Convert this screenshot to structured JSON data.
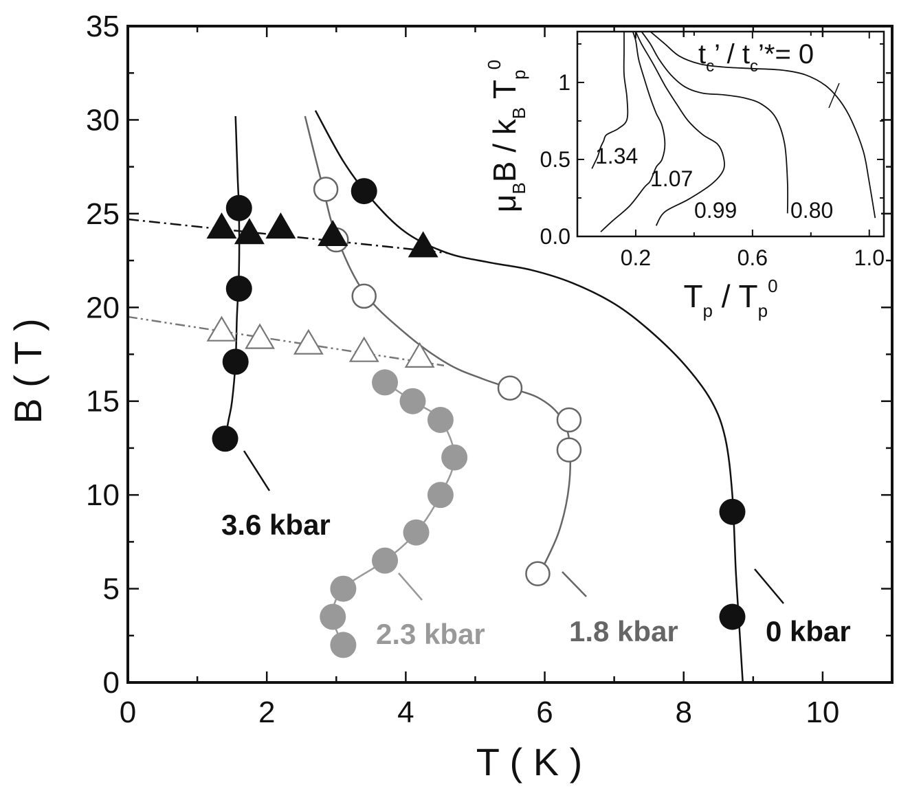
{
  "chart_data": [
    {
      "type": "scatter",
      "xlabel": "T ( K )",
      "ylabel": "B ( T )",
      "xlim": [
        0,
        11
      ],
      "ylim": [
        0,
        35
      ],
      "x_ticks": [
        "0",
        "2",
        "4",
        "6",
        "8",
        "10"
      ],
      "y_ticks": [
        "0",
        "5",
        "10",
        "15",
        "20",
        "25",
        "30",
        "35"
      ],
      "grid": false,
      "series": [
        {
          "name": "0 kbar",
          "color": "#111111",
          "marker": "filled-circle",
          "x": [
            3.4,
            8.7,
            8.7
          ],
          "y": [
            26.2,
            9.1,
            3.5
          ],
          "curve_x": [
            2.7,
            3.1,
            3.5,
            4.0,
            4.6,
            5.2,
            5.8,
            6.4,
            7.0,
            7.5,
            8.0,
            8.4,
            8.6,
            8.7,
            8.75,
            8.8,
            8.85
          ],
          "curve_y": [
            30.5,
            27.8,
            25.8,
            24.0,
            22.9,
            22.4,
            22.0,
            21.3,
            20.2,
            18.8,
            17.0,
            15.0,
            13.0,
            10.0,
            6.0,
            3.0,
            0.0
          ]
        },
        {
          "name": "1.8 kbar",
          "color": "#666666",
          "marker": "open-circle",
          "x": [
            2.85,
            3.0,
            3.4,
            5.5,
            6.35,
            6.35,
            5.9
          ],
          "y": [
            26.3,
            23.6,
            20.6,
            15.7,
            14.0,
            12.4,
            5.8
          ],
          "curve_x": [
            2.55,
            2.8,
            3.0,
            3.4,
            4.0,
            4.6,
            5.1,
            5.5,
            5.9,
            6.2,
            6.35,
            6.35,
            6.2,
            5.9
          ],
          "curve_y": [
            30.2,
            26.5,
            23.8,
            20.8,
            18.6,
            17.0,
            16.2,
            15.7,
            15.2,
            14.3,
            13.0,
            10.5,
            8.0,
            5.6
          ]
        },
        {
          "name": "2.3 kbar",
          "color": "#999999",
          "marker": "filled-circle",
          "x": [
            3.7,
            4.1,
            4.5,
            4.7,
            4.5,
            4.15,
            3.7,
            3.1,
            2.95,
            3.1
          ],
          "y": [
            16.0,
            15.0,
            14.0,
            12.0,
            10.0,
            8.0,
            6.5,
            5.0,
            3.5,
            2.0
          ],
          "curve_x": [
            3.7,
            4.1,
            4.5,
            4.7,
            4.5,
            4.15,
            3.7,
            3.1,
            2.95,
            3.1
          ],
          "curve_y": [
            16.0,
            15.0,
            14.0,
            12.0,
            10.0,
            8.0,
            6.5,
            5.0,
            3.5,
            2.0
          ]
        },
        {
          "name": "3.6 kbar",
          "color": "#111111",
          "marker": "filled-circle",
          "x": [
            1.6,
            1.6,
            1.55,
            1.4
          ],
          "y": [
            25.3,
            21.0,
            17.1,
            13.0
          ],
          "curve_x": [
            1.55,
            1.58,
            1.6,
            1.6,
            1.57,
            1.55,
            1.5,
            1.45,
            1.4
          ],
          "curve_y": [
            30.2,
            27.0,
            25.0,
            22.0,
            19.5,
            17.1,
            15.0,
            14.0,
            13.0
          ]
        },
        {
          "name": "",
          "color": "#111111",
          "marker": "filled-triangle",
          "x": [
            1.35,
            1.75,
            2.2,
            2.95,
            4.25
          ],
          "y": [
            24.2,
            23.9,
            24.2,
            23.8,
            23.2
          ],
          "line": "dash-dot",
          "line_x": [
            0,
            4.6
          ],
          "line_y": [
            24.7,
            22.9
          ]
        },
        {
          "name": "",
          "color": "#777777",
          "marker": "open-triangle",
          "x": [
            1.35,
            1.9,
            2.6,
            3.4,
            4.2
          ],
          "y": [
            18.7,
            18.3,
            18.0,
            17.6,
            17.3
          ],
          "line": "dash-dot-dot",
          "line_x": [
            0,
            4.55
          ],
          "line_y": [
            19.5,
            16.9
          ]
        }
      ]
    },
    {
      "type": "line",
      "xlabel_main": "T",
      "xlabel_sub": "p",
      "xlabel_mid": " / T",
      "xlabel_sup": "0",
      "ylabel_mu": "μ",
      "ylabel_b1": "B",
      "ylabel_mid": "B / k",
      "ylabel_b2": "B",
      "ylabel_t": " T",
      "ylabel_p": "p",
      "ylabel_sup": "0",
      "xlim": [
        0,
        1.05
      ],
      "ylim": [
        0,
        1.33
      ],
      "x_ticks": [
        "0.2",
        "0.6",
        "1.0"
      ],
      "y_ticks": [
        "0.0",
        "0.5",
        "1"
      ],
      "annotation": {
        "t": "t",
        "c1": "c",
        "mid1": "’ / t",
        "c2": "c",
        "rest": "’*= 0"
      },
      "series": [
        {
          "label": "0",
          "x": [
            0.25,
            0.3,
            0.35,
            0.42,
            0.5,
            0.6,
            0.7,
            0.78,
            0.85,
            0.9,
            0.94,
            0.98,
            1.0,
            1.02
          ],
          "y": [
            1.33,
            1.25,
            1.17,
            1.12,
            1.1,
            1.09,
            1.08,
            1.05,
            0.98,
            0.88,
            0.75,
            0.55,
            0.35,
            0.12
          ]
        },
        {
          "label": "0.80",
          "x": [
            0.22,
            0.25,
            0.28,
            0.32,
            0.37,
            0.43,
            0.5,
            0.57,
            0.63,
            0.68,
            0.71,
            0.72,
            0.72
          ],
          "y": [
            1.33,
            1.25,
            1.15,
            1.05,
            0.97,
            0.93,
            0.92,
            0.9,
            0.86,
            0.77,
            0.6,
            0.35,
            0.15
          ]
        },
        {
          "label": "0.99",
          "x": [
            0.2,
            0.22,
            0.26,
            0.3,
            0.34,
            0.38,
            0.43,
            0.48,
            0.5,
            0.5,
            0.46,
            0.38,
            0.3,
            0.27
          ],
          "y": [
            1.33,
            1.25,
            1.12,
            0.98,
            0.86,
            0.75,
            0.66,
            0.6,
            0.52,
            0.43,
            0.34,
            0.24,
            0.16,
            0.07
          ]
        },
        {
          "label": "1.07",
          "x": [
            0.19,
            0.2,
            0.21,
            0.23,
            0.25,
            0.27,
            0.29,
            0.3,
            0.29,
            0.27,
            0.25,
            0.23,
            0.18,
            0.12,
            0.08
          ],
          "y": [
            1.33,
            1.27,
            1.15,
            1.02,
            0.9,
            0.8,
            0.72,
            0.6,
            0.5,
            0.45,
            0.36,
            0.32,
            0.2,
            0.1,
            0.03
          ]
        },
        {
          "label": "1.34",
          "x": [
            0.16,
            0.16,
            0.16,
            0.17,
            0.17,
            0.14,
            0.1,
            0.09,
            0.08,
            0.07,
            0.06,
            0.05
          ],
          "y": [
            1.33,
            1.2,
            1.05,
            0.9,
            0.76,
            0.7,
            0.66,
            0.62,
            0.58,
            0.52,
            0.48,
            0.44
          ]
        }
      ],
      "curve_labels": [
        "1.34",
        "1.07",
        "0.99",
        "0.80"
      ]
    }
  ],
  "labels": {
    "p0": "0 kbar",
    "p18": "1.8 kbar",
    "p23": "2.3 kbar",
    "p36": "3.6 kbar"
  },
  "colors": {
    "black": "#111111",
    "dark_gray": "#666666",
    "light_gray": "#999999",
    "triangle_open": "#777777"
  }
}
